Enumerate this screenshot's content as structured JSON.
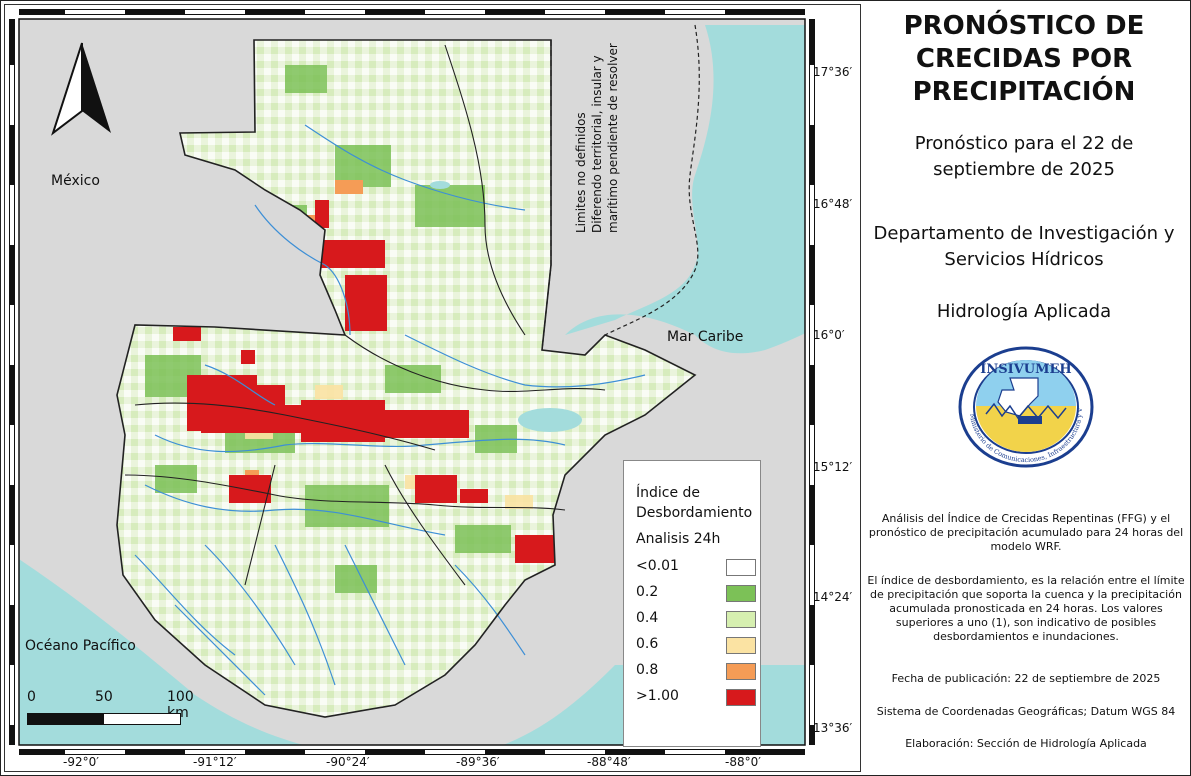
{
  "title": "PRONÓSTICO DE CRECIDAS POR PRECIPITACIÓN",
  "forecast_line1": "Pronóstico para el 22 de",
  "forecast_line2": "septiembre de 2025",
  "department_line1": "Departamento de Investigación y",
  "department_line2": "Servicios Hídricos",
  "section": "Hidrología Aplicada",
  "logo": {
    "text": "INSIVUMEH",
    "ring_text": "Ministerio de Comunicaciones, Infraestructura y Vivienda"
  },
  "analysis_note": "Análisis del Índice de Crecidas Repentinas (FFG) y el pronóstico de precipitación acumulado para 24 horas del modelo WRF.",
  "index_note": "El índice de desbordamiento, es la relación entre el límite de precipitación que soporta la cuenca y la precipitación acumulada pronosticada en 24 horas. Los valores superiores a uno (1), son indicativo de posibles desbordamientos e inundaciones.",
  "publication_date": "Fecha de publicación: 22 de septiembre de 2025",
  "coordinate_system": "Sistema de Coordenadas Geográficas; Datum WGS 84",
  "credits": "Elaboración: Sección de Hidrología Aplicada",
  "map": {
    "places": {
      "mexico": "México",
      "caribbean": "Mar Caribe",
      "pacific": "Océano Pacífico"
    },
    "disputed_line1": "Limites no definidos",
    "disputed_line2": "Diferendo    territorial,    insular    y",
    "disputed_line3": "marítimo pendiente de resolver",
    "lat_labels": [
      "17°36′",
      "16°48′",
      "16°0′",
      "15°12′",
      "14°24′",
      "13°36′"
    ],
    "lon_labels": [
      "-92°0′",
      "-91°12′",
      "-90°24′",
      "-89°36′",
      "-88°48′",
      "-88°0′"
    ],
    "scale": {
      "start": "0",
      "mid": "50",
      "end": "100 km"
    },
    "colors": {
      "ocean": "#a3dcdc",
      "land_outside": "#d9d9d9",
      "river": "#3d8fd6",
      "border": "#222222"
    }
  },
  "legend": {
    "title_line1": "Índice de",
    "title_line2": "Desbordamiento",
    "subtitle": "Analisis 24h",
    "items": [
      {
        "label": "<0.01",
        "color": "#ffffff"
      },
      {
        "label": "0.2",
        "color": "#7cc157"
      },
      {
        "label": "0.4",
        "color": "#d6efb0"
      },
      {
        "label": "0.6",
        "color": "#fbe3a3"
      },
      {
        "label": "0.8",
        "color": "#f59c56"
      },
      {
        "label": ">1.00",
        "color": "#d7191c"
      }
    ]
  }
}
